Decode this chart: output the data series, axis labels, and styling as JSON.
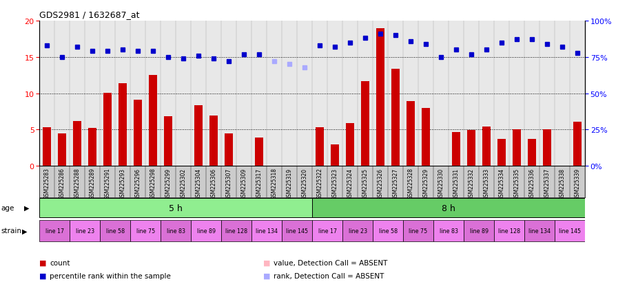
{
  "title": "GDS2981 / 1632687_at",
  "samples": [
    "GSM225283",
    "GSM225286",
    "GSM225288",
    "GSM225289",
    "GSM225291",
    "GSM225293",
    "GSM225296",
    "GSM225298",
    "GSM225299",
    "GSM225302",
    "GSM225304",
    "GSM225306",
    "GSM225307",
    "GSM225309",
    "GSM225317",
    "GSM225318",
    "GSM225319",
    "GSM225320",
    "GSM225322",
    "GSM225323",
    "GSM225324",
    "GSM225325",
    "GSM225326",
    "GSM225327",
    "GSM225328",
    "GSM225329",
    "GSM225330",
    "GSM225331",
    "GSM225332",
    "GSM225333",
    "GSM225334",
    "GSM225335",
    "GSM225336",
    "GSM225337",
    "GSM225338",
    "GSM225339"
  ],
  "count_values": [
    5.3,
    4.5,
    6.2,
    5.2,
    10.1,
    11.4,
    9.1,
    12.5,
    6.8,
    null,
    8.4,
    6.9,
    4.5,
    null,
    3.9,
    null,
    null,
    null,
    5.3,
    3.0,
    5.9,
    11.7,
    19.0,
    13.4,
    8.9,
    8.0,
    null,
    4.7,
    4.9,
    5.4,
    3.7,
    5.0,
    3.7,
    5.0,
    null,
    6.1
  ],
  "count_absent": [
    false,
    false,
    false,
    false,
    false,
    false,
    false,
    false,
    false,
    true,
    false,
    false,
    false,
    true,
    false,
    true,
    true,
    true,
    false,
    false,
    false,
    false,
    false,
    false,
    false,
    false,
    true,
    false,
    false,
    false,
    false,
    false,
    false,
    false,
    true,
    false
  ],
  "rank_values": [
    83,
    75,
    82,
    79,
    79,
    80,
    79,
    79,
    75,
    74,
    76,
    74,
    72,
    77,
    77,
    72,
    70,
    68,
    83,
    82,
    85,
    88,
    91,
    90,
    86,
    84,
    75,
    80,
    77,
    80,
    85,
    87,
    87,
    84,
    82,
    78
  ],
  "rank_absent": [
    false,
    false,
    false,
    false,
    false,
    false,
    false,
    false,
    false,
    false,
    false,
    false,
    false,
    false,
    false,
    true,
    true,
    true,
    false,
    false,
    false,
    false,
    false,
    false,
    false,
    false,
    false,
    false,
    false,
    false,
    false,
    false,
    false,
    false,
    false,
    false
  ],
  "age_groups": [
    {
      "label": "5 h",
      "start": 0,
      "end": 18,
      "color": "#90EE90"
    },
    {
      "label": "8 h",
      "start": 18,
      "end": 36,
      "color": "#66CC66"
    }
  ],
  "strain_groups": [
    {
      "label": "line 17",
      "start": 0,
      "end": 2,
      "color": "#DA70D6"
    },
    {
      "label": "line 23",
      "start": 2,
      "end": 4,
      "color": "#EE82EE"
    },
    {
      "label": "line 58",
      "start": 4,
      "end": 6,
      "color": "#DA70D6"
    },
    {
      "label": "line 75",
      "start": 6,
      "end": 8,
      "color": "#EE82EE"
    },
    {
      "label": "line 83",
      "start": 8,
      "end": 10,
      "color": "#DA70D6"
    },
    {
      "label": "line 89",
      "start": 10,
      "end": 12,
      "color": "#EE82EE"
    },
    {
      "label": "line 128",
      "start": 12,
      "end": 14,
      "color": "#DA70D6"
    },
    {
      "label": "line 134",
      "start": 14,
      "end": 16,
      "color": "#EE82EE"
    },
    {
      "label": "line 145",
      "start": 16,
      "end": 18,
      "color": "#DA70D6"
    },
    {
      "label": "line 17",
      "start": 18,
      "end": 20,
      "color": "#EE82EE"
    },
    {
      "label": "line 23",
      "start": 20,
      "end": 22,
      "color": "#DA70D6"
    },
    {
      "label": "line 58",
      "start": 22,
      "end": 24,
      "color": "#EE82EE"
    },
    {
      "label": "line 75",
      "start": 24,
      "end": 26,
      "color": "#DA70D6"
    },
    {
      "label": "line 83",
      "start": 26,
      "end": 28,
      "color": "#EE82EE"
    },
    {
      "label": "line 89",
      "start": 28,
      "end": 30,
      "color": "#DA70D6"
    },
    {
      "label": "line 128",
      "start": 30,
      "end": 32,
      "color": "#EE82EE"
    },
    {
      "label": "line 134",
      "start": 32,
      "end": 34,
      "color": "#DA70D6"
    },
    {
      "label": "line 145",
      "start": 34,
      "end": 36,
      "color": "#EE82EE"
    }
  ],
  "ylim_left": [
    0,
    20
  ],
  "ylim_right": [
    0,
    100
  ],
  "yticks_left": [
    0,
    5,
    10,
    15,
    20
  ],
  "yticks_right": [
    0,
    25,
    50,
    75,
    100
  ],
  "bar_color_present": "#CC0000",
  "bar_color_absent": "#FFB6C1",
  "rank_color_present": "#0000CC",
  "rank_color_absent": "#AAAAFF",
  "bg_color": "#FFFFFF",
  "plot_bg_color": "#E8E8E8",
  "legend_items": [
    {
      "label": "count",
      "color": "#CC0000"
    },
    {
      "label": "percentile rank within the sample",
      "color": "#0000CC"
    },
    {
      "label": "value, Detection Call = ABSENT",
      "color": "#FFB6C1"
    },
    {
      "label": "rank, Detection Call = ABSENT",
      "color": "#AAAAFF"
    }
  ]
}
